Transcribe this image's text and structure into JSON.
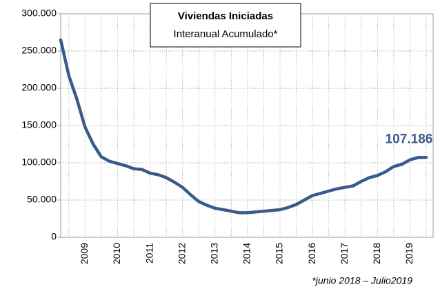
{
  "chart_data": {
    "type": "line",
    "title": "Viviendas Iniciadas",
    "subtitle": "Interanual Acumulado*",
    "footnote": "*junio 2018 – Julio2019",
    "categories": [
      null,
      null,
      null,
      "2009",
      null,
      null,
      null,
      "2010",
      null,
      null,
      null,
      "2011",
      null,
      null,
      null,
      "2012",
      null,
      null,
      null,
      "2013",
      null,
      null,
      null,
      "2014",
      null,
      null,
      null,
      "2015",
      null,
      null,
      null,
      "2016",
      null,
      null,
      null,
      "2017",
      null,
      null,
      null,
      "2018",
      null,
      null,
      null,
      "2019",
      null,
      null
    ],
    "series": [
      {
        "name": "Viviendas Iniciadas",
        "color": "#3b5a8c",
        "values": [
          265000,
          217000,
          185000,
          148000,
          125000,
          108000,
          102000,
          99000,
          96000,
          92000,
          91000,
          86000,
          84000,
          80000,
          74000,
          67000,
          57000,
          48000,
          43000,
          39000,
          37000,
          35000,
          33000,
          33000,
          34000,
          35000,
          36000,
          37000,
          40000,
          44000,
          50000,
          56000,
          59000,
          62000,
          65000,
          67000,
          69000,
          75000,
          80000,
          83000,
          88000,
          95000,
          98000,
          104000,
          107000,
          107186
        ],
        "value_labels": [
          null,
          null,
          null,
          null,
          null,
          null,
          null,
          null,
          null,
          null,
          null,
          null,
          null,
          null,
          null,
          null,
          null,
          null,
          null,
          null,
          null,
          null,
          null,
          null,
          null,
          null,
          null,
          null,
          null,
          null,
          null,
          null,
          null,
          null,
          null,
          null,
          null,
          null,
          null,
          null,
          null,
          null,
          null,
          null,
          null,
          "107.186"
        ]
      }
    ],
    "ylim": [
      0,
      300000
    ],
    "yticks": [
      0,
      {
        "value": 50000,
        "label": "50.000"
      },
      {
        "value": 100000,
        "label": "100.000"
      },
      {
        "value": 150000,
        "label": "150.000"
      },
      {
        "value": 200000,
        "label": "200.000"
      },
      {
        "value": 250000,
        "label": "250.000"
      },
      {
        "value": 300000,
        "label": "300.000"
      }
    ],
    "grid": true
  }
}
